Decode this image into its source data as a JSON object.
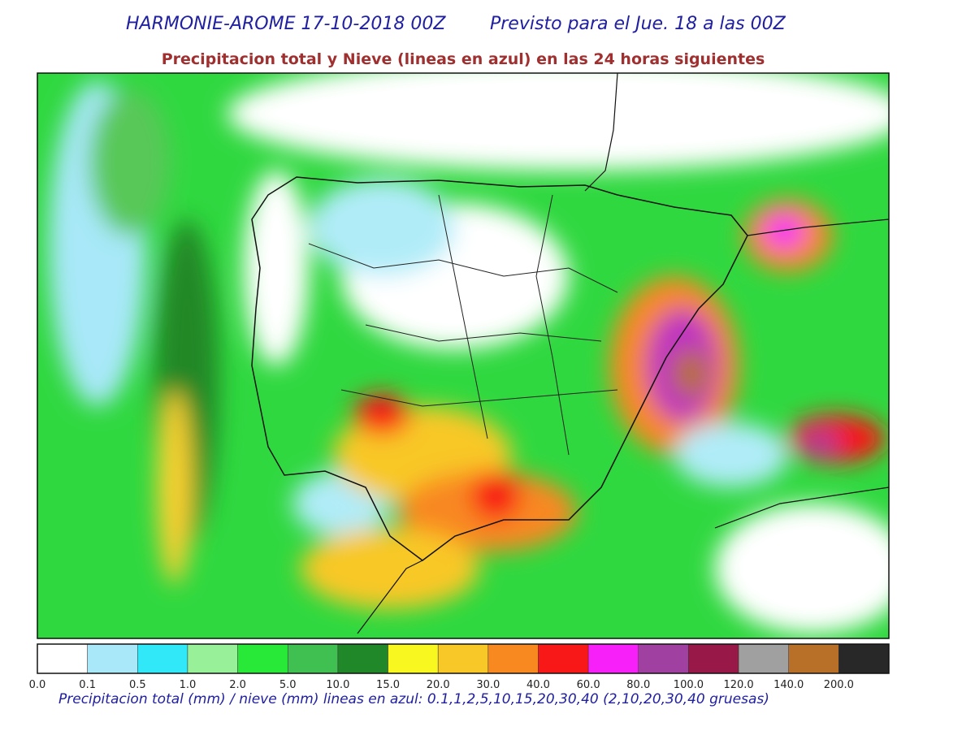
{
  "header": {
    "title_left": "HARMONIE-AROME 17-10-2018 00Z",
    "title_right": "Previsto para el Jue. 18 a las 00Z",
    "subtitle": "Precipitacion total y Nieve (lineas en azul) en las 24 horas siguientes"
  },
  "colorbar": {
    "bins": [
      {
        "label": "0.0",
        "color": "#ffffff"
      },
      {
        "label": "0.1",
        "color": "#a8e8f8"
      },
      {
        "label": "0.5",
        "color": "#30e8f8"
      },
      {
        "label": "1.0",
        "color": "#98f098"
      },
      {
        "label": "2.0",
        "color": "#28e838"
      },
      {
        "label": "5.0",
        "color": "#40c050"
      },
      {
        "label": "10.0",
        "color": "#208828"
      },
      {
        "label": "15.0",
        "color": "#f8f820"
      },
      {
        "label": "20.0",
        "color": "#f8c828"
      },
      {
        "label": "30.0",
        "color": "#f88820"
      },
      {
        "label": "40.0",
        "color": "#f81818"
      },
      {
        "label": "60.0",
        "color": "#f820f8"
      },
      {
        "label": "80.0",
        "color": "#a040a0"
      },
      {
        "label": "100.0",
        "color": "#981848"
      },
      {
        "label": "120.0",
        "color": "#a0a0a0"
      },
      {
        "label": "140.0",
        "color": "#b87028"
      },
      {
        "label": "200.0",
        "color": "#282828"
      }
    ]
  },
  "footer": {
    "caption": "Precipitacion total (mm) / nieve (mm) lineas en azul: 0.1,1,2,5,10,15,20,30,40  (2,10,20,30,40 gruesas)"
  }
}
